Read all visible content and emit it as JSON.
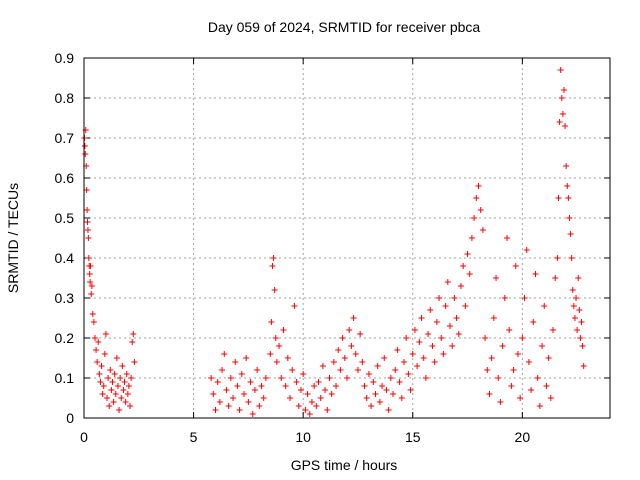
{
  "chart_data": {
    "type": "scatter",
    "title": "Day 059 of 2024, SRMTID for receiver pbca",
    "xlabel": "GPS time / hours",
    "ylabel": "SRMTID / TECUs",
    "xlim": [
      0,
      24
    ],
    "ylim": [
      0,
      0.9
    ],
    "x_ticks": [
      "0",
      "5",
      "10",
      "15",
      "20"
    ],
    "x_tick_values": [
      0,
      5,
      10,
      15,
      20
    ],
    "y_ticks": [
      "0",
      "0.1",
      "0.2",
      "0.3",
      "0.4",
      "0.5",
      "0.6",
      "0.7",
      "0.8",
      "0.9"
    ],
    "y_tick_values": [
      0,
      0.1,
      0.2,
      0.3,
      0.4,
      0.5,
      0.6,
      0.7,
      0.8,
      0.9
    ],
    "grid": true,
    "marker": "+",
    "marker_color": "#ff0000",
    "series": [
      {
        "name": "pbca",
        "points": [
          [
            0.02,
            0.7
          ],
          [
            0.04,
            0.68
          ],
          [
            0.06,
            0.66
          ],
          [
            0.08,
            0.72
          ],
          [
            0.1,
            0.63
          ],
          [
            0.12,
            0.57
          ],
          [
            0.14,
            0.52
          ],
          [
            0.16,
            0.49
          ],
          [
            0.18,
            0.47
          ],
          [
            0.2,
            0.45
          ],
          [
            0.22,
            0.4
          ],
          [
            0.24,
            0.38
          ],
          [
            0.26,
            0.36
          ],
          [
            0.28,
            0.34
          ],
          [
            0.3,
            0.38
          ],
          [
            0.33,
            0.31
          ],
          [
            0.36,
            0.33
          ],
          [
            0.4,
            0.26
          ],
          [
            0.45,
            0.24
          ],
          [
            0.5,
            0.2
          ],
          [
            0.55,
            0.17
          ],
          [
            0.6,
            0.14
          ],
          [
            0.65,
            0.19
          ],
          [
            0.7,
            0.11
          ],
          [
            0.75,
            0.09
          ],
          [
            0.8,
            0.13
          ],
          [
            0.85,
            0.06
          ],
          [
            0.9,
            0.08
          ],
          [
            0.95,
            0.16
          ],
          [
            1.0,
            0.21
          ],
          [
            1.05,
            0.05
          ],
          [
            1.1,
            0.1
          ],
          [
            1.15,
            0.03
          ],
          [
            1.2,
            0.12
          ],
          [
            1.25,
            0.07
          ],
          [
            1.3,
            0.09
          ],
          [
            1.35,
            0.04
          ],
          [
            1.4,
            0.11
          ],
          [
            1.45,
            0.06
          ],
          [
            1.5,
            0.15
          ],
          [
            1.55,
            0.08
          ],
          [
            1.6,
            0.02
          ],
          [
            1.65,
            0.1
          ],
          [
            1.7,
            0.05
          ],
          [
            1.75,
            0.13
          ],
          [
            1.8,
            0.07
          ],
          [
            1.85,
            0.09
          ],
          [
            1.9,
            0.04
          ],
          [
            1.95,
            0.11
          ],
          [
            2.0,
            0.06
          ],
          [
            2.05,
            0.08
          ],
          [
            2.1,
            0.03
          ],
          [
            2.15,
            0.1
          ],
          [
            2.2,
            0.19
          ],
          [
            2.25,
            0.21
          ],
          [
            2.3,
            0.14
          ],
          [
            5.8,
            0.1
          ],
          [
            5.9,
            0.06
          ],
          [
            6.0,
            0.02
          ],
          [
            6.1,
            0.09
          ],
          [
            6.2,
            0.04
          ],
          [
            6.3,
            0.12
          ],
          [
            6.4,
            0.16
          ],
          [
            6.5,
            0.07
          ],
          [
            6.6,
            0.03
          ],
          [
            6.7,
            0.1
          ],
          [
            6.8,
            0.05
          ],
          [
            6.9,
            0.14
          ],
          [
            7.0,
            0.08
          ],
          [
            7.1,
            0.02
          ],
          [
            7.2,
            0.11
          ],
          [
            7.3,
            0.06
          ],
          [
            7.4,
            0.15
          ],
          [
            7.5,
            0.04
          ],
          [
            7.6,
            0.09
          ],
          [
            7.7,
            0.01
          ],
          [
            7.8,
            0.07
          ],
          [
            7.9,
            0.12
          ],
          [
            8.0,
            0.03
          ],
          [
            8.1,
            0.08
          ],
          [
            8.2,
            0.05
          ],
          [
            8.3,
            0.1
          ],
          [
            8.5,
            0.16
          ],
          [
            8.55,
            0.24
          ],
          [
            8.6,
            0.38
          ],
          [
            8.65,
            0.4
          ],
          [
            8.7,
            0.32
          ],
          [
            8.75,
            0.2
          ],
          [
            8.8,
            0.14
          ],
          [
            8.9,
            0.18
          ],
          [
            9.0,
            0.1
          ],
          [
            9.1,
            0.22
          ],
          [
            9.2,
            0.08
          ],
          [
            9.3,
            0.15
          ],
          [
            9.4,
            0.05
          ],
          [
            9.5,
            0.12
          ],
          [
            9.6,
            0.28
          ],
          [
            9.7,
            0.09
          ],
          [
            9.8,
            0.03
          ],
          [
            9.9,
            0.07
          ],
          [
            10.0,
            0.11
          ],
          [
            10.1,
            0.02
          ],
          [
            10.2,
            0.06
          ],
          [
            10.3,
            0.01
          ],
          [
            10.4,
            0.04
          ],
          [
            10.5,
            0.08
          ],
          [
            10.6,
            0.03
          ],
          [
            10.7,
            0.09
          ],
          [
            10.8,
            0.05
          ],
          [
            10.9,
            0.13
          ],
          [
            11.0,
            0.07
          ],
          [
            11.1,
            0.02
          ],
          [
            11.2,
            0.1
          ],
          [
            11.3,
            0.06
          ],
          [
            11.4,
            0.14
          ],
          [
            11.5,
            0.08
          ],
          [
            11.6,
            0.17
          ],
          [
            11.7,
            0.12
          ],
          [
            11.8,
            0.2
          ],
          [
            11.9,
            0.15
          ],
          [
            12.0,
            0.1
          ],
          [
            12.1,
            0.22
          ],
          [
            12.2,
            0.18
          ],
          [
            12.3,
            0.25
          ],
          [
            12.4,
            0.16
          ],
          [
            12.5,
            0.12
          ],
          [
            12.6,
            0.21
          ],
          [
            12.7,
            0.14
          ],
          [
            12.8,
            0.08
          ],
          [
            12.9,
            0.05
          ],
          [
            13.0,
            0.11
          ],
          [
            13.1,
            0.03
          ],
          [
            13.2,
            0.09
          ],
          [
            13.3,
            0.06
          ],
          [
            13.4,
            0.13
          ],
          [
            13.5,
            0.04
          ],
          [
            13.6,
            0.08
          ],
          [
            13.7,
            0.15
          ],
          [
            13.8,
            0.07
          ],
          [
            13.9,
            0.02
          ],
          [
            14.0,
            0.1
          ],
          [
            14.1,
            0.06
          ],
          [
            14.2,
            0.12
          ],
          [
            14.3,
            0.17
          ],
          [
            14.4,
            0.09
          ],
          [
            14.5,
            0.05
          ],
          [
            14.6,
            0.14
          ],
          [
            14.7,
            0.2
          ],
          [
            14.8,
            0.11
          ],
          [
            14.9,
            0.07
          ],
          [
            15.0,
            0.16
          ],
          [
            15.1,
            0.22
          ],
          [
            15.2,
            0.13
          ],
          [
            15.3,
            0.19
          ],
          [
            15.4,
            0.25
          ],
          [
            15.5,
            0.15
          ],
          [
            15.6,
            0.1
          ],
          [
            15.7,
            0.21
          ],
          [
            15.8,
            0.27
          ],
          [
            15.9,
            0.18
          ],
          [
            16.0,
            0.14
          ],
          [
            16.1,
            0.24
          ],
          [
            16.2,
            0.3
          ],
          [
            16.3,
            0.2
          ],
          [
            16.4,
            0.16
          ],
          [
            16.5,
            0.28
          ],
          [
            16.6,
            0.34
          ],
          [
            16.7,
            0.23
          ],
          [
            16.8,
            0.18
          ],
          [
            16.9,
            0.3
          ],
          [
            17.0,
            0.25
          ],
          [
            17.1,
            0.21
          ],
          [
            17.2,
            0.33
          ],
          [
            17.3,
            0.38
          ],
          [
            17.4,
            0.28
          ],
          [
            17.5,
            0.41
          ],
          [
            17.6,
            0.36
          ],
          [
            17.7,
            0.45
          ],
          [
            17.8,
            0.5
          ],
          [
            17.9,
            0.55
          ],
          [
            18.0,
            0.58
          ],
          [
            18.1,
            0.52
          ],
          [
            18.2,
            0.47
          ],
          [
            18.3,
            0.2
          ],
          [
            18.4,
            0.12
          ],
          [
            18.5,
            0.06
          ],
          [
            18.6,
            0.15
          ],
          [
            18.7,
            0.25
          ],
          [
            18.8,
            0.35
          ],
          [
            18.9,
            0.1
          ],
          [
            19.0,
            0.04
          ],
          [
            19.1,
            0.18
          ],
          [
            19.2,
            0.3
          ],
          [
            19.3,
            0.45
          ],
          [
            19.4,
            0.22
          ],
          [
            19.5,
            0.08
          ],
          [
            19.6,
            0.12
          ],
          [
            19.7,
            0.38
          ],
          [
            19.8,
            0.16
          ],
          [
            19.9,
            0.05
          ],
          [
            20.0,
            0.2
          ],
          [
            20.1,
            0.3
          ],
          [
            20.2,
            0.42
          ],
          [
            20.3,
            0.14
          ],
          [
            20.4,
            0.07
          ],
          [
            20.5,
            0.24
          ],
          [
            20.6,
            0.36
          ],
          [
            20.7,
            0.1
          ],
          [
            20.8,
            0.03
          ],
          [
            20.9,
            0.18
          ],
          [
            21.0,
            0.28
          ],
          [
            21.1,
            0.08
          ],
          [
            21.2,
            0.15
          ],
          [
            21.3,
            0.05
          ],
          [
            21.4,
            0.22
          ],
          [
            21.5,
            0.35
          ],
          [
            21.6,
            0.4
          ],
          [
            21.65,
            0.55
          ],
          [
            21.7,
            0.74
          ],
          [
            21.75,
            0.87
          ],
          [
            21.8,
            0.8
          ],
          [
            21.85,
            0.76
          ],
          [
            21.9,
            0.82
          ],
          [
            21.95,
            0.73
          ],
          [
            22.0,
            0.63
          ],
          [
            22.05,
            0.58
          ],
          [
            22.1,
            0.55
          ],
          [
            22.15,
            0.5
          ],
          [
            22.2,
            0.46
          ],
          [
            22.25,
            0.4
          ],
          [
            22.3,
            0.32
          ],
          [
            22.35,
            0.28
          ],
          [
            22.4,
            0.25
          ],
          [
            22.45,
            0.3
          ],
          [
            22.5,
            0.22
          ],
          [
            22.55,
            0.35
          ],
          [
            22.6,
            0.27
          ],
          [
            22.65,
            0.2
          ],
          [
            22.7,
            0.24
          ],
          [
            22.75,
            0.18
          ],
          [
            22.8,
            0.13
          ]
        ]
      }
    ]
  }
}
